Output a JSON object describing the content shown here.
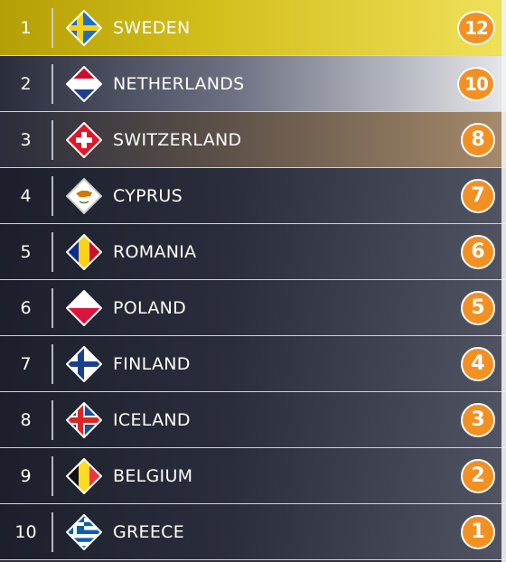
{
  "rows": [
    {
      "rank": "1",
      "country": "SWEDEN",
      "points": "12",
      "flag": "sweden-flag-icon"
    },
    {
      "rank": "2",
      "country": "NETHERLANDS",
      "points": "10",
      "flag": "netherlands-flag-icon"
    },
    {
      "rank": "3",
      "country": "SWITZERLAND",
      "points": "8",
      "flag": "switzerland-flag-icon"
    },
    {
      "rank": "4",
      "country": "CYPRUS",
      "points": "7",
      "flag": "cyprus-flag-icon"
    },
    {
      "rank": "5",
      "country": "ROMANIA",
      "points": "6",
      "flag": "romania-flag-icon"
    },
    {
      "rank": "6",
      "country": "POLAND",
      "points": "5",
      "flag": "poland-flag-icon"
    },
    {
      "rank": "7",
      "country": "FINLAND",
      "points": "4",
      "flag": "finland-flag-icon"
    },
    {
      "rank": "8",
      "country": "ICELAND",
      "points": "3",
      "flag": "iceland-flag-icon"
    },
    {
      "rank": "9",
      "country": "BELGIUM",
      "points": "2",
      "flag": "belgium-flag-icon"
    },
    {
      "rank": "10",
      "country": "GREECE",
      "points": "1",
      "flag": "greece-flag-icon"
    }
  ],
  "colors": {
    "points_badge": "#f39022",
    "first_place": "#d2bd1a",
    "row_dark": "#2a2d3c"
  }
}
